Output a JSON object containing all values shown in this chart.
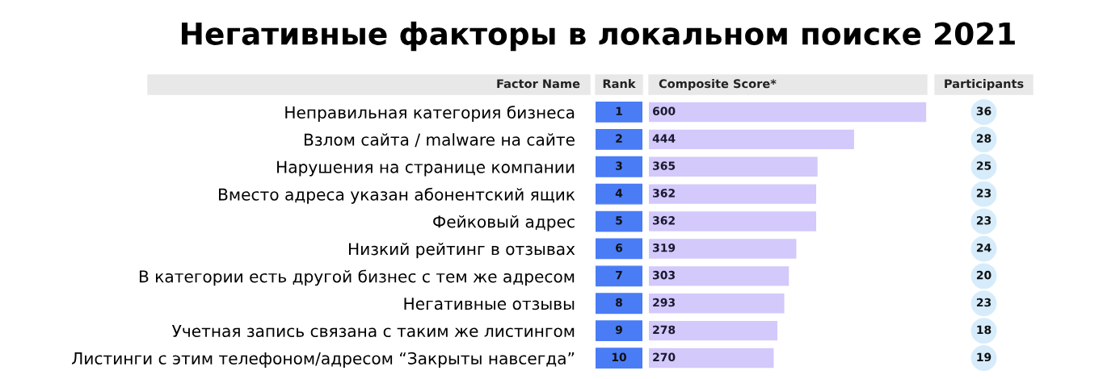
{
  "chart_data": [
    {
      "type": "other",
      "title": "Негативные факторы в локальном поиске 2021",
      "ylabel": "Factor Name",
      "xlabel": "Rank",
      "color": "#4a7cf5",
      "data_labels": true,
      "categories": [
        "Неправильная категория бизнеса",
        "Взлом сайта / malware на сайте",
        "Нарушения на странице компании",
        "Вместо адреса указан абонентский ящик",
        "Фейковый адрес",
        "Низкий рейтинг в отзывах",
        "В категории есть другой бизнес с тем же адресом",
        "Негативные отзывы",
        "Учетная запись связана с таким же листингом",
        "Листинги с этим телефоном/адресом “Закрыты навсегда”"
      ],
      "values": [
        1,
        2,
        3,
        4,
        5,
        6,
        7,
        8,
        9,
        10
      ]
    },
    {
      "type": "bar",
      "orientation": "horizontal",
      "xlabel": "Composite Score*",
      "color": "#d3c9fb",
      "data_labels": true,
      "categories": [
        null,
        null,
        null,
        null,
        null,
        null,
        null,
        null,
        null,
        null
      ],
      "values": [
        600,
        444,
        365,
        362,
        362,
        319,
        303,
        293,
        278,
        270
      ]
    },
    {
      "type": "other",
      "xlabel": "Participants",
      "color": "#d6ecfb",
      "data_labels": true,
      "values": [
        36,
        28,
        25,
        23,
        23,
        24,
        20,
        23,
        18,
        19
      ]
    }
  ]
}
